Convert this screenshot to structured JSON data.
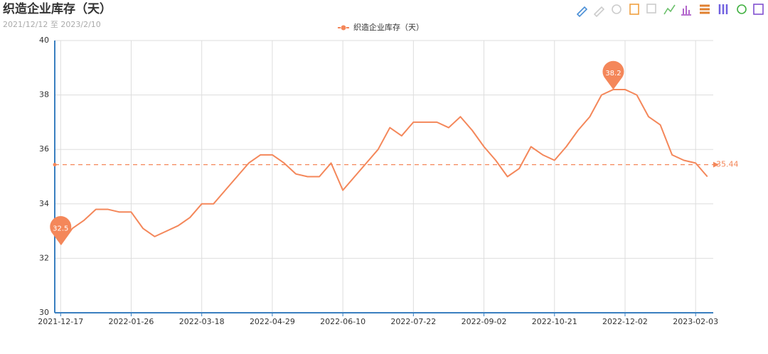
{
  "chart_data": {
    "type": "line",
    "title": "织造企业库存（天）",
    "subtitle": "2021/12/12 至 2023/2/10",
    "categories": [
      "2021-12-17",
      null,
      null,
      null,
      null,
      null,
      "2022-01-26",
      null,
      null,
      null,
      null,
      null,
      "2022-03-18",
      null,
      null,
      null,
      null,
      null,
      "2022-04-29",
      null,
      null,
      null,
      null,
      null,
      "2022-06-10",
      null,
      null,
      null,
      null,
      null,
      "2022-07-22",
      null,
      null,
      null,
      null,
      null,
      "2022-09-02",
      null,
      null,
      null,
      null,
      null,
      "2022-10-21",
      null,
      null,
      null,
      null,
      null,
      "2022-12-02",
      null,
      null,
      null,
      null,
      null,
      "2023-02-03",
      null
    ],
    "series": [
      {
        "name": "织造企业库存（天）",
        "color": "#f4875a",
        "values": [
          32.5,
          33.1,
          33.4,
          33.8,
          33.8,
          33.7,
          33.7,
          33.1,
          32.8,
          33.0,
          33.2,
          33.5,
          34.0,
          34.0,
          34.5,
          35.0,
          35.5,
          35.8,
          35.8,
          35.5,
          35.1,
          35.0,
          35.0,
          35.5,
          34.5,
          35.0,
          35.5,
          36.0,
          36.8,
          36.5,
          37.0,
          37.0,
          37.0,
          36.8,
          37.2,
          36.7,
          36.1,
          35.6,
          35.0,
          35.3,
          36.1,
          35.8,
          35.6,
          36.1,
          36.7,
          37.2,
          38.0,
          38.2,
          38.2,
          38.0,
          37.2,
          36.9,
          35.8,
          35.6,
          35.5,
          35.0
        ],
        "max_point": 38.2,
        "min_point": 32.5,
        "average": 35.44
      }
    ],
    "ylim": [
      30,
      40
    ],
    "yticks": [
      30,
      32,
      34,
      36,
      38,
      40
    ],
    "grid": true
  }
}
